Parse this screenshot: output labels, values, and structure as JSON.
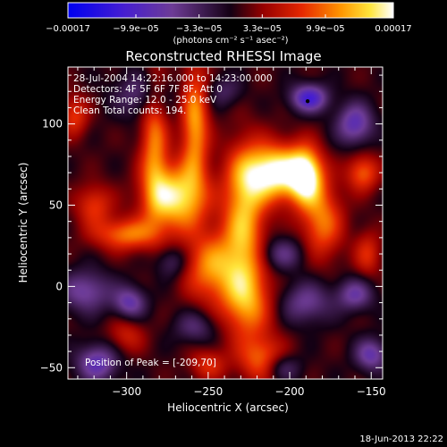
{
  "chart_data": {
    "type": "heatmap",
    "title": "Reconstructed RHESSI Image",
    "xlabel": "Heliocentric X (arcsec)",
    "ylabel": "Heliocentric Y (arcsec)",
    "xlim": [
      -336,
      -143
    ],
    "ylim": [
      -57,
      135
    ],
    "xticks": [
      {
        "v": -300,
        "label": "−300"
      },
      {
        "v": -250,
        "label": "−250"
      },
      {
        "v": -200,
        "label": "−200"
      },
      {
        "v": -150,
        "label": "−150"
      }
    ],
    "yticks": [
      {
        "v": -50,
        "label": "−50"
      },
      {
        "v": 0,
        "label": "0"
      },
      {
        "v": 50,
        "label": "50"
      },
      {
        "v": 100,
        "label": "100"
      }
    ],
    "colorbar": {
      "range": [
        -0.00017,
        0.00017
      ],
      "ticks": [
        {
          "v": -0.00017,
          "label": "−0.00017"
        },
        {
          "v": -9.9e-05,
          "label": "−9.9e−05"
        },
        {
          "v": -3.3e-05,
          "label": "−3.3e−05"
        },
        {
          "v": 3.3e-05,
          "label": "3.3e−05"
        },
        {
          "v": 9.9e-05,
          "label": "9.9e−05"
        },
        {
          "v": 0.00017,
          "label": "0.00017"
        }
      ],
      "units": "(photons cm⁻² s⁻¹ asec⁻²)"
    },
    "annotations": [
      "28-Jul-2004 14:22:16.000 to 14:23:00.000",
      "Detectors: 4F 5F 6F 7F 8F, Att 0",
      "Energy Range: 12.0 - 25.0 keV",
      "Clean     Total counts: 194."
    ],
    "peak_label": "Position of Peak = [-209,70]",
    "peak": {
      "x": -209,
      "y": 70
    },
    "max_marker": {
      "x": -189,
      "y": 114
    },
    "sources": [
      {
        "x": -209,
        "y": 70,
        "sx": 14,
        "sy": 12,
        "a": 1.0
      },
      {
        "x": -190,
        "y": 68,
        "sx": 7,
        "sy": 12,
        "a": 0.85
      },
      {
        "x": -180,
        "y": 40,
        "sx": 9,
        "sy": 16,
        "a": 0.55
      },
      {
        "x": -228,
        "y": 40,
        "sx": 9,
        "sy": 30,
        "a": 0.7
      },
      {
        "x": -270,
        "y": 55,
        "sx": 13,
        "sy": 14,
        "a": 0.85
      },
      {
        "x": -258,
        "y": 100,
        "sx": 6,
        "sy": 26,
        "a": 0.65
      },
      {
        "x": -283,
        "y": 90,
        "sx": 6,
        "sy": 30,
        "a": 0.55
      },
      {
        "x": -300,
        "y": 32,
        "sx": 14,
        "sy": 7,
        "a": 0.55
      },
      {
        "x": -248,
        "y": 12,
        "sx": 12,
        "sy": 15,
        "a": 0.6
      },
      {
        "x": -226,
        "y": -10,
        "sx": 11,
        "sy": 16,
        "a": 0.55
      },
      {
        "x": -217,
        "y": -45,
        "sx": 10,
        "sy": 10,
        "a": 0.5
      },
      {
        "x": -155,
        "y": 70,
        "sx": 7,
        "sy": 8,
        "a": 0.5
      },
      {
        "x": -152,
        "y": 20,
        "sx": 6,
        "sy": 10,
        "a": 0.35
      },
      {
        "x": -320,
        "y": 50,
        "sx": 8,
        "sy": 9,
        "a": 0.4
      },
      {
        "x": -332,
        "y": 105,
        "sx": 6,
        "sy": 9,
        "a": 0.4
      },
      {
        "x": -250,
        "y": -48,
        "sx": 8,
        "sy": 7,
        "a": 0.35
      },
      {
        "x": -300,
        "y": -30,
        "sx": 8,
        "sy": 8,
        "a": 0.3
      },
      {
        "x": -325,
        "y": -3,
        "sx": 11,
        "sy": 9,
        "a": -0.45
      },
      {
        "x": -298,
        "y": -10,
        "sx": 7,
        "sy": 7,
        "a": -0.5
      },
      {
        "x": -318,
        "y": -47,
        "sx": 9,
        "sy": 8,
        "a": -0.55
      },
      {
        "x": -290,
        "y": 118,
        "sx": 12,
        "sy": 10,
        "a": -0.35
      },
      {
        "x": -188,
        "y": 116,
        "sx": 8,
        "sy": 6,
        "a": -0.7
      },
      {
        "x": -160,
        "y": 100,
        "sx": 8,
        "sy": 9,
        "a": -0.55
      },
      {
        "x": -205,
        "y": 20,
        "sx": 10,
        "sy": 7,
        "a": -0.35
      },
      {
        "x": -190,
        "y": -10,
        "sx": 11,
        "sy": 9,
        "a": -0.4
      },
      {
        "x": -160,
        "y": -5,
        "sx": 8,
        "sy": 7,
        "a": -0.45
      },
      {
        "x": -150,
        "y": -42,
        "sx": 7,
        "sy": 7,
        "a": -0.5
      },
      {
        "x": -205,
        "y": -50,
        "sx": 8,
        "sy": 6,
        "a": -0.35
      },
      {
        "x": -258,
        "y": -25,
        "sx": 9,
        "sy": 7,
        "a": -0.3
      },
      {
        "x": -272,
        "y": 15,
        "sx": 7,
        "sy": 7,
        "a": -0.3
      },
      {
        "x": -240,
        "y": 120,
        "sx": 8,
        "sy": 7,
        "a": -0.25
      }
    ],
    "background": 0.05,
    "grid": false,
    "legend": "none"
  },
  "footer": {
    "timestamp": "18-Jun-2013 22:22"
  }
}
